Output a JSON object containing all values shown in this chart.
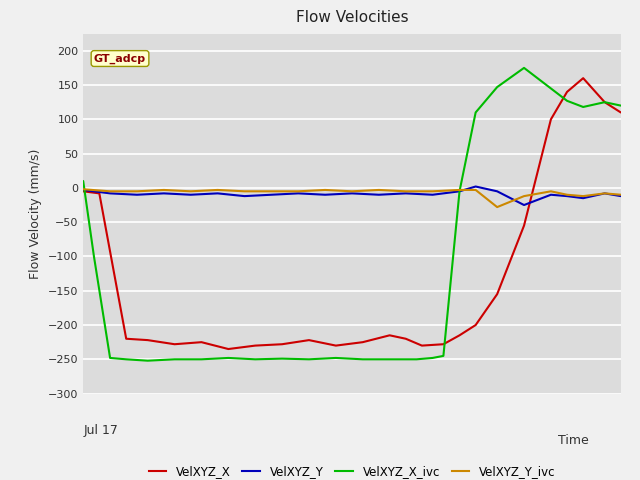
{
  "title": "Flow Velocities",
  "ylabel": "Flow Velocity (mm/s)",
  "xlabel": "Time",
  "annotation": "GT_adcp",
  "ylim": [
    -300,
    225
  ],
  "yticks": [
    -300,
    -250,
    -200,
    -150,
    -100,
    -50,
    0,
    50,
    100,
    150,
    200
  ],
  "x_label_left": "Jul 17",
  "x_label_right": "Time",
  "background_color": "#e8e8e8",
  "plot_bg_color": "#dcdcdc",
  "legend_labels": [
    "VelXYZ_X",
    "VelXYZ_Y",
    "VelXYZ_X_ivc",
    "VelXYZ_Y_ivc"
  ],
  "line_colors": [
    "#cc0000",
    "#0000bb",
    "#00bb00",
    "#cc8800"
  ],
  "series": {
    "VelXYZ_X": {
      "x": [
        0,
        3,
        8,
        12,
        17,
        22,
        27,
        32,
        37,
        42,
        47,
        52,
        57,
        60,
        63,
        67,
        70,
        73,
        77,
        82,
        87,
        90,
        93,
        97,
        100
      ],
      "y": [
        -5,
        -8,
        -220,
        -222,
        -228,
        -225,
        -235,
        -230,
        -228,
        -222,
        -230,
        -225,
        -215,
        -220,
        -230,
        -228,
        -215,
        -200,
        -155,
        -55,
        100,
        140,
        160,
        125,
        110
      ]
    },
    "VelXYZ_Y": {
      "x": [
        0,
        5,
        10,
        15,
        20,
        25,
        30,
        35,
        40,
        45,
        50,
        55,
        60,
        65,
        70,
        73,
        77,
        82,
        87,
        90,
        93,
        97,
        100
      ],
      "y": [
        -3,
        -8,
        -10,
        -8,
        -10,
        -8,
        -12,
        -10,
        -8,
        -10,
        -8,
        -10,
        -8,
        -10,
        -5,
        2,
        -5,
        -25,
        -10,
        -12,
        -15,
        -8,
        -12
      ]
    },
    "VelXYZ_X_ivc": {
      "x": [
        0,
        2,
        5,
        8,
        12,
        17,
        22,
        27,
        32,
        37,
        42,
        47,
        52,
        57,
        62,
        65,
        67,
        70,
        73,
        77,
        82,
        87,
        90,
        93,
        97,
        100
      ],
      "y": [
        10,
        -100,
        -248,
        -250,
        -252,
        -250,
        -250,
        -248,
        -250,
        -249,
        -250,
        -248,
        -250,
        -250,
        -250,
        -248,
        -245,
        -5,
        110,
        147,
        175,
        145,
        127,
        118,
        125,
        120
      ]
    },
    "VelXYZ_Y_ivc": {
      "x": [
        0,
        5,
        10,
        15,
        20,
        25,
        30,
        35,
        40,
        45,
        50,
        55,
        60,
        65,
        70,
        73,
        77,
        82,
        87,
        90,
        93,
        97,
        100
      ],
      "y": [
        -2,
        -5,
        -5,
        -3,
        -5,
        -3,
        -5,
        -5,
        -5,
        -3,
        -5,
        -3,
        -5,
        -5,
        -3,
        -3,
        -28,
        -12,
        -5,
        -10,
        -12,
        -8,
        -10
      ]
    }
  }
}
